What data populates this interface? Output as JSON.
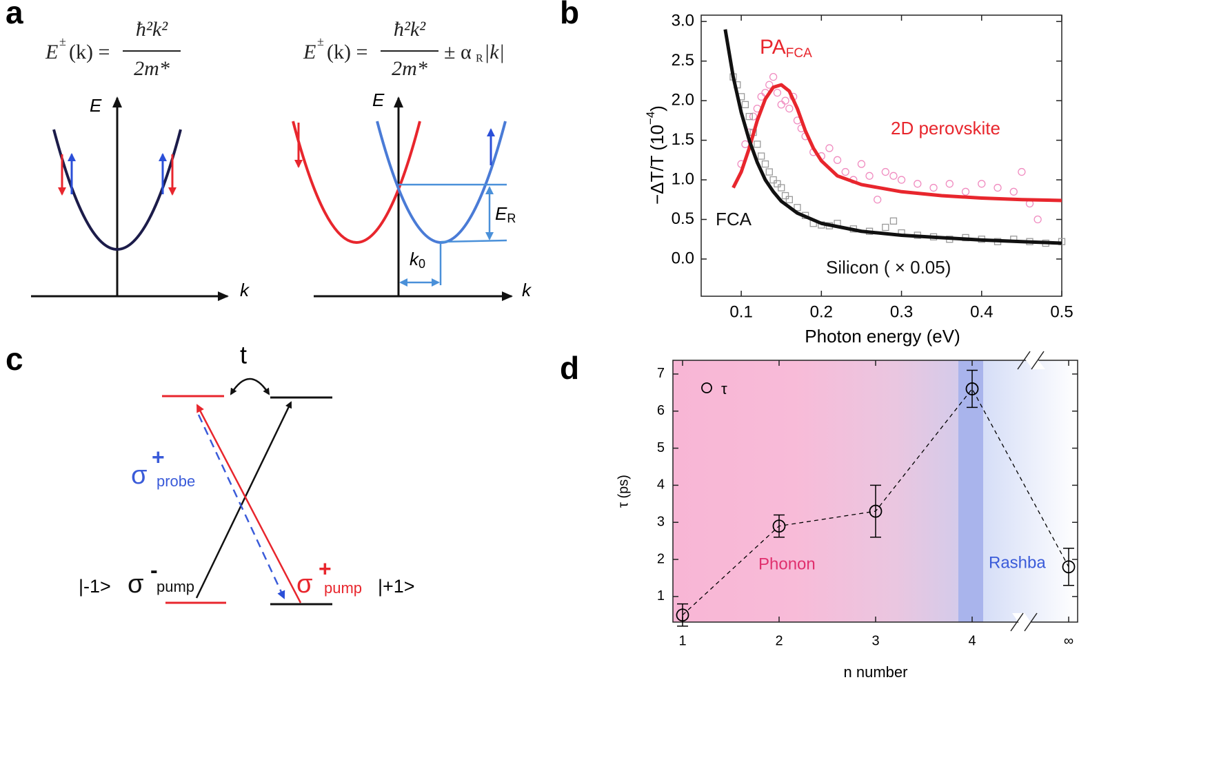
{
  "panels": {
    "labels": [
      "a",
      "b",
      "c",
      "d"
    ],
    "a": {
      "left_formula": {
        "E": "E",
        "sup": "±",
        "arg": "(k) =",
        "num": "ħ²k²",
        "den": "2m*"
      },
      "right_formula": {
        "E": "E",
        "sup": "±",
        "arg": "(k) =",
        "num": "ħ²k²",
        "den": "2m*",
        "term": "± α",
        "sub": "R",
        "abs": "|k|"
      },
      "axis_labels": [
        "E",
        "k",
        "E",
        "k"
      ],
      "ER": [
        "E",
        "R"
      ],
      "k0": [
        "k",
        "0"
      ]
    },
    "c": {
      "t": "t",
      "left_state": "|-1>",
      "right_state": "|+1>",
      "sigma_minus_pump": [
        "σ",
        "-",
        "pump"
      ],
      "sigma_plus_pump": [
        "σ",
        "+",
        "pump"
      ],
      "sigma_plus_probe": [
        "σ",
        "+",
        "probe"
      ]
    }
  },
  "chart_data": [
    {
      "type": "line",
      "x_label": "Photon energy (eV)",
      "y_label": [
        "−ΔT/T (10",
        "−4",
        ")"
      ],
      "annotations": {
        "pa": [
          "PA",
          "FCA"
        ],
        "perovskite": "2D perovskite",
        "fca": "FCA",
        "silicon": "Silicon ( × 0.05)"
      },
      "xlim": [
        0.05,
        0.5
      ],
      "ylim": [
        -0.47,
        3.08
      ],
      "xticks": [
        0.1,
        0.2,
        0.3,
        0.4,
        0.5
      ],
      "yticks": [
        {
          "value": 0,
          "label": "0.0"
        },
        {
          "value": 0.5,
          "label": "0.5"
        },
        {
          "value": 1,
          "label": "1.0"
        },
        {
          "value": 1.5,
          "label": "1.5"
        },
        {
          "value": 2,
          "label": "2.0"
        },
        {
          "value": 2.5,
          "label": "2.5"
        },
        {
          "value": 3,
          "label": "3.0"
        }
      ],
      "series": [
        {
          "style": "scatter",
          "marker": "circle",
          "color": "#f08cc0",
          "x": [
            0.1,
            0.105,
            0.11,
            0.115,
            0.12,
            0.125,
            0.13,
            0.135,
            0.14,
            0.145,
            0.15,
            0.155,
            0.16,
            0.165,
            0.17,
            0.175,
            0.18,
            0.19,
            0.2,
            0.21,
            0.22,
            0.23,
            0.24,
            0.25,
            0.26,
            0.27,
            0.28,
            0.29,
            0.3,
            0.32,
            0.34,
            0.36,
            0.38,
            0.4,
            0.42,
            0.44,
            0.45,
            0.46,
            0.47
          ],
          "values": [
            1.2,
            1.45,
            1.6,
            1.8,
            1.9,
            2.05,
            2.1,
            2.2,
            2.3,
            2.1,
            1.95,
            2.0,
            1.9,
            2.05,
            1.75,
            1.65,
            1.55,
            1.35,
            1.3,
            1.4,
            1.25,
            1.1,
            1.0,
            1.2,
            1.05,
            0.75,
            1.1,
            1.05,
            1.0,
            0.95,
            0.9,
            0.95,
            0.85,
            0.95,
            0.9,
            0.85,
            1.1,
            0.7,
            0.5
          ]
        },
        {
          "style": "scatter",
          "marker": "square",
          "color": "#9a9a9a",
          "x": [
            0.09,
            0.095,
            0.1,
            0.105,
            0.11,
            0.115,
            0.12,
            0.125,
            0.13,
            0.135,
            0.14,
            0.145,
            0.15,
            0.155,
            0.16,
            0.17,
            0.18,
            0.19,
            0.2,
            0.21,
            0.22,
            0.24,
            0.26,
            0.28,
            0.29,
            0.3,
            0.32,
            0.34,
            0.36,
            0.38,
            0.4,
            0.42,
            0.44,
            0.46,
            0.48,
            0.5
          ],
          "values": [
            2.3,
            2.2,
            2.05,
            1.95,
            1.8,
            1.6,
            1.45,
            1.3,
            1.2,
            1.1,
            1.0,
            0.95,
            0.9,
            0.8,
            0.75,
            0.65,
            0.55,
            0.45,
            0.43,
            0.42,
            0.45,
            0.38,
            0.35,
            0.4,
            0.48,
            0.33,
            0.3,
            0.28,
            0.25,
            0.27,
            0.25,
            0.22,
            0.25,
            0.22,
            0.2,
            0.22
          ]
        },
        {
          "style": "line",
          "color": "#e8262d",
          "x": [
            0.09,
            0.1,
            0.11,
            0.12,
            0.13,
            0.14,
            0.15,
            0.16,
            0.17,
            0.18,
            0.19,
            0.2,
            0.22,
            0.25,
            0.3,
            0.35,
            0.4,
            0.45,
            0.5
          ],
          "values": [
            0.9,
            1.1,
            1.4,
            1.75,
            2.02,
            2.17,
            2.2,
            2.12,
            1.9,
            1.62,
            1.4,
            1.24,
            1.05,
            0.94,
            0.85,
            0.8,
            0.77,
            0.75,
            0.74
          ]
        },
        {
          "style": "line",
          "color": "#111111",
          "x": [
            0.08,
            0.09,
            0.1,
            0.11,
            0.12,
            0.13,
            0.14,
            0.15,
            0.17,
            0.2,
            0.25,
            0.3,
            0.35,
            0.4,
            0.45,
            0.5
          ],
          "values": [
            2.9,
            2.3,
            1.85,
            1.5,
            1.22,
            1.0,
            0.85,
            0.73,
            0.58,
            0.45,
            0.35,
            0.3,
            0.27,
            0.24,
            0.22,
            0.2
          ]
        }
      ]
    },
    {
      "type": "errorbar",
      "x_label": "n number",
      "y_label": "τ (ps)",
      "categories": [
        "1",
        "2",
        "3",
        "4",
        "∞"
      ],
      "ylim": [
        0.31,
        7.37
      ],
      "yticks": [
        1,
        2,
        3,
        4,
        5,
        6,
        7
      ],
      "annotations": {
        "phonon": "Phonon",
        "rashba": "Rashba"
      },
      "series": [
        {
          "name": "τ",
          "color": "#000000",
          "values": [
            0.5,
            2.9,
            3.3,
            6.6,
            1.8
          ],
          "errors": [
            0.3,
            0.3,
            0.7,
            0.5,
            0.5
          ]
        }
      ]
    }
  ]
}
